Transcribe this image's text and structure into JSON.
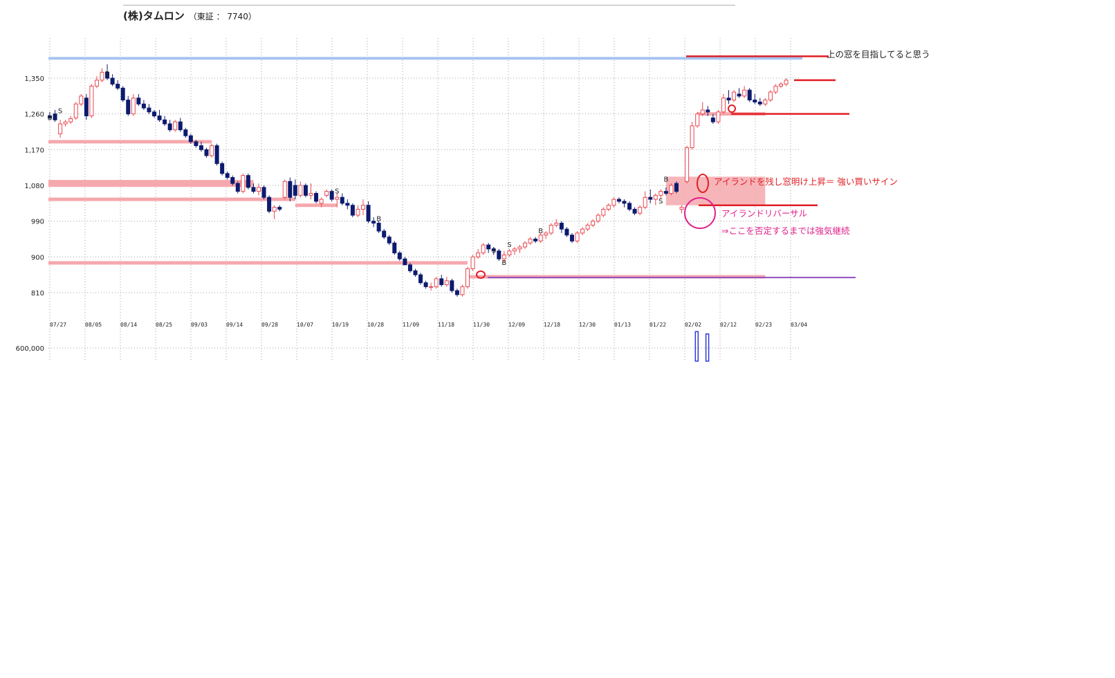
{
  "header": {
    "name": "(株)タムロン",
    "exchange": "（東証 ： 7740）"
  },
  "annotations": {
    "target_note": "上の窓を目指してると思う",
    "buy_signal_note": "アイランドを残し窓明け上昇＝ 強い買いサイン",
    "reversal_title": "アイランドリバーサル",
    "reversal_note": "⇒ここを否定するまでは強気継続"
  },
  "colors": {
    "up_candle": "#e8474f",
    "down_candle": "#0d1b6e",
    "band_pink": "#f5a8ad",
    "resistance_red": "#e01e24",
    "support_purple": "#8e4ec0",
    "top_band_blue": "#a7c4f0",
    "grid": "#a0a0a0",
    "circle_magenta": "#e0218a"
  },
  "chart_data": {
    "type": "candlestick",
    "y_ticks": [
      1350,
      1260,
      1170,
      1080,
      990,
      900,
      810
    ],
    "y_tick_labels": [
      "1,350",
      "1,260",
      "1,170",
      "1,080",
      "990",
      "900",
      "810"
    ],
    "x_tick_labels": [
      "07/27",
      "08/05",
      "08/14",
      "08/25",
      "09/03",
      "09/14",
      "09/28",
      "10/07",
      "10/19",
      "10/28",
      "11/09",
      "11/18",
      "11/30",
      "12/09",
      "12/18",
      "12/30",
      "01/13",
      "01/22",
      "02/02",
      "02/12",
      "02/23",
      "03/04"
    ],
    "grid": true,
    "volume": {
      "y_tick_label": "600,000",
      "y_tick": 600000,
      "bars": [
        {
          "date_index": 18.3,
          "value": 640000
        },
        {
          "date_index": 18.6,
          "value": 590000
        }
      ]
    },
    "ohlc": [
      [
        1255,
        1265,
        1245,
        1250
      ],
      [
        1260,
        1270,
        1240,
        1245
      ],
      [
        1210,
        1245,
        1200,
        1235
      ],
      [
        1235,
        1245,
        1228,
        1240
      ],
      [
        1240,
        1255,
        1235,
        1248
      ],
      [
        1250,
        1290,
        1245,
        1285
      ],
      [
        1285,
        1310,
        1280,
        1305
      ],
      [
        1300,
        1310,
        1245,
        1255
      ],
      [
        1255,
        1335,
        1250,
        1330
      ],
      [
        1330,
        1355,
        1325,
        1345
      ],
      [
        1345,
        1375,
        1340,
        1365
      ],
      [
        1365,
        1385,
        1345,
        1350
      ],
      [
        1350,
        1360,
        1330,
        1335
      ],
      [
        1335,
        1345,
        1320,
        1325
      ],
      [
        1325,
        1330,
        1290,
        1295
      ],
      [
        1295,
        1305,
        1255,
        1260
      ],
      [
        1260,
        1310,
        1255,
        1300
      ],
      [
        1300,
        1310,
        1280,
        1285
      ],
      [
        1285,
        1295,
        1270,
        1275
      ],
      [
        1275,
        1285,
        1260,
        1265
      ],
      [
        1265,
        1270,
        1250,
        1255
      ],
      [
        1255,
        1270,
        1240,
        1245
      ],
      [
        1245,
        1255,
        1230,
        1235
      ],
      [
        1235,
        1245,
        1215,
        1220
      ],
      [
        1220,
        1245,
        1215,
        1240
      ],
      [
        1240,
        1250,
        1215,
        1220
      ],
      [
        1220,
        1225,
        1200,
        1205
      ],
      [
        1205,
        1210,
        1185,
        1190
      ],
      [
        1190,
        1195,
        1175,
        1180
      ],
      [
        1180,
        1190,
        1165,
        1170
      ],
      [
        1170,
        1175,
        1150,
        1155
      ],
      [
        1155,
        1185,
        1150,
        1180
      ],
      [
        1180,
        1185,
        1130,
        1135
      ],
      [
        1135,
        1140,
        1105,
        1110
      ],
      [
        1110,
        1115,
        1095,
        1100
      ],
      [
        1100,
        1105,
        1080,
        1085
      ],
      [
        1085,
        1090,
        1060,
        1065
      ],
      [
        1065,
        1110,
        1060,
        1105
      ],
      [
        1105,
        1110,
        1070,
        1075
      ],
      [
        1075,
        1085,
        1060,
        1065
      ],
      [
        1065,
        1085,
        1055,
        1075
      ],
      [
        1075,
        1080,
        1045,
        1050
      ],
      [
        1050,
        1055,
        1010,
        1015
      ],
      [
        1015,
        1030,
        995,
        1025
      ],
      [
        1025,
        1030,
        1015,
        1020
      ],
      [
        1050,
        1095,
        1045,
        1090
      ],
      [
        1090,
        1100,
        1040,
        1050
      ],
      [
        1080,
        1095,
        1045,
        1055
      ],
      [
        1055,
        1090,
        1050,
        1080
      ],
      [
        1080,
        1085,
        1050,
        1055
      ],
      [
        1055,
        1085,
        1045,
        1060
      ],
      [
        1060,
        1065,
        1035,
        1040
      ],
      [
        1035,
        1050,
        1025,
        1045
      ],
      [
        1055,
        1070,
        1050,
        1065
      ],
      [
        1065,
        1070,
        1040,
        1045
      ],
      [
        1045,
        1060,
        1025,
        1050
      ],
      [
        1050,
        1060,
        1030,
        1035
      ],
      [
        1035,
        1045,
        1020,
        1030
      ],
      [
        1030,
        1035,
        1000,
        1005
      ],
      [
        1005,
        1030,
        1000,
        1020
      ],
      [
        1020,
        1045,
        1005,
        1030
      ],
      [
        1030,
        1040,
        985,
        990
      ],
      [
        990,
        1000,
        975,
        985
      ],
      [
        985,
        990,
        960,
        965
      ],
      [
        965,
        970,
        945,
        950
      ],
      [
        950,
        955,
        930,
        935
      ],
      [
        935,
        940,
        905,
        910
      ],
      [
        910,
        915,
        890,
        895
      ],
      [
        895,
        900,
        880,
        880
      ],
      [
        880,
        885,
        860,
        865
      ],
      [
        865,
        870,
        850,
        855
      ],
      [
        855,
        860,
        830,
        835
      ],
      [
        835,
        840,
        820,
        825
      ],
      [
        825,
        835,
        815,
        825
      ],
      [
        825,
        850,
        820,
        845
      ],
      [
        845,
        855,
        825,
        830
      ],
      [
        830,
        850,
        825,
        840
      ],
      [
        840,
        845,
        810,
        815
      ],
      [
        815,
        820,
        800,
        805
      ],
      [
        805,
        830,
        800,
        825
      ],
      [
        825,
        875,
        820,
        870
      ],
      [
        870,
        905,
        865,
        900
      ],
      [
        900,
        920,
        895,
        910
      ],
      [
        910,
        935,
        905,
        930
      ],
      [
        930,
        935,
        910,
        920
      ],
      [
        920,
        925,
        905,
        915
      ],
      [
        915,
        920,
        890,
        895
      ],
      [
        895,
        915,
        885,
        905
      ],
      [
        905,
        920,
        900,
        915
      ],
      [
        915,
        925,
        905,
        920
      ],
      [
        920,
        930,
        910,
        925
      ],
      [
        925,
        940,
        920,
        935
      ],
      [
        935,
        950,
        930,
        945
      ],
      [
        945,
        950,
        935,
        940
      ],
      [
        940,
        960,
        935,
        955
      ],
      [
        955,
        965,
        945,
        960
      ],
      [
        960,
        985,
        955,
        980
      ],
      [
        980,
        995,
        975,
        985
      ],
      [
        985,
        990,
        960,
        970
      ],
      [
        970,
        975,
        950,
        955
      ],
      [
        955,
        960,
        935,
        940
      ],
      [
        940,
        965,
        935,
        960
      ],
      [
        960,
        975,
        955,
        970
      ],
      [
        970,
        985,
        965,
        980
      ],
      [
        980,
        995,
        975,
        990
      ],
      [
        990,
        1010,
        985,
        1005
      ],
      [
        1005,
        1025,
        1000,
        1020
      ],
      [
        1020,
        1035,
        1015,
        1030
      ],
      [
        1030,
        1050,
        1025,
        1045
      ],
      [
        1045,
        1050,
        1035,
        1040
      ],
      [
        1040,
        1045,
        1025,
        1035
      ],
      [
        1035,
        1040,
        1015,
        1020
      ],
      [
        1020,
        1025,
        1005,
        1010
      ],
      [
        1010,
        1030,
        1005,
        1025
      ],
      [
        1025,
        1065,
        1020,
        1050
      ],
      [
        1050,
        1070,
        1035,
        1045
      ],
      [
        1045,
        1060,
        1030,
        1055
      ],
      [
        1055,
        1070,
        1045,
        1065
      ],
      [
        1065,
        1075,
        1055,
        1060
      ],
      [
        1060,
        1085,
        1055,
        1080
      ],
      [
        1085,
        1090,
        1060,
        1065
      ],
      [
        1020,
        1030,
        1010,
        1025
      ],
      [
        1090,
        1180,
        1085,
        1175
      ],
      [
        1175,
        1240,
        1170,
        1230
      ],
      [
        1230,
        1265,
        1225,
        1260
      ],
      [
        1260,
        1290,
        1255,
        1270
      ],
      [
        1270,
        1280,
        1255,
        1265
      ],
      [
        1250,
        1260,
        1235,
        1240
      ],
      [
        1240,
        1270,
        1235,
        1265
      ],
      [
        1265,
        1310,
        1260,
        1300
      ],
      [
        1300,
        1320,
        1285,
        1295
      ],
      [
        1295,
        1320,
        1290,
        1315
      ],
      [
        1310,
        1325,
        1300,
        1305
      ],
      [
        1305,
        1330,
        1300,
        1320
      ],
      [
        1320,
        1325,
        1290,
        1295
      ],
      [
        1295,
        1310,
        1285,
        1290
      ],
      [
        1290,
        1300,
        1280,
        1285
      ],
      [
        1285,
        1300,
        1280,
        1295
      ],
      [
        1295,
        1320,
        1290,
        1315
      ],
      [
        1315,
        1335,
        1310,
        1330
      ],
      [
        1330,
        1340,
        1325,
        1335
      ],
      [
        1335,
        1350,
        1330,
        1345
      ]
    ],
    "trade_marks": [
      {
        "label": "B",
        "index": 0,
        "price": 1245
      },
      {
        "label": "S",
        "index": 2,
        "price": 1262
      },
      {
        "label": "B",
        "index": 11,
        "price": 1355
      },
      {
        "label": "S",
        "index": 55,
        "price": 1060
      },
      {
        "label": "B",
        "index": 63,
        "price": 990
      },
      {
        "label": "S",
        "index": 85,
        "price": 910
      },
      {
        "label": "B",
        "index": 87,
        "price": 880
      },
      {
        "label": "S",
        "index": 88,
        "price": 925
      },
      {
        "label": "B",
        "index": 94,
        "price": 960
      },
      {
        "label": "B",
        "index": 118,
        "price": 1090
      },
      {
        "label": "S",
        "index": 117,
        "price": 1035
      }
    ],
    "horizontal_lines": [
      {
        "kind": "blue-band",
        "price": 1400
      },
      {
        "kind": "pink-band",
        "price": 1190,
        "from_index": 0,
        "to_index": 31
      },
      {
        "kind": "pink-band",
        "price": 1085,
        "from_index": 0,
        "to_index": 39,
        "thick": true
      },
      {
        "kind": "pink-band",
        "price": 1045,
        "from_index": 0,
        "to_index": 47
      },
      {
        "kind": "pink-band",
        "price": 1030,
        "from_index": 47,
        "to_index": 55
      },
      {
        "kind": "pink-band",
        "price": 885,
        "from_index": 0,
        "to_index": 80
      },
      {
        "kind": "pink-band",
        "price": 850,
        "from_index": 80,
        "to_index": 137
      },
      {
        "kind": "pink-band",
        "price": 1260,
        "from_index": 124,
        "to_index": 137
      },
      {
        "kind": "pink-box",
        "price_top": 1102,
        "price_bottom": 1030,
        "from_index": 118,
        "to_index": 137
      },
      {
        "kind": "red-line",
        "price": 1405
      },
      {
        "kind": "red-line",
        "price": 1345
      },
      {
        "kind": "red-line",
        "price": 1260
      },
      {
        "kind": "red-line",
        "price": 1030
      },
      {
        "kind": "purple-line",
        "price": 848
      }
    ]
  }
}
